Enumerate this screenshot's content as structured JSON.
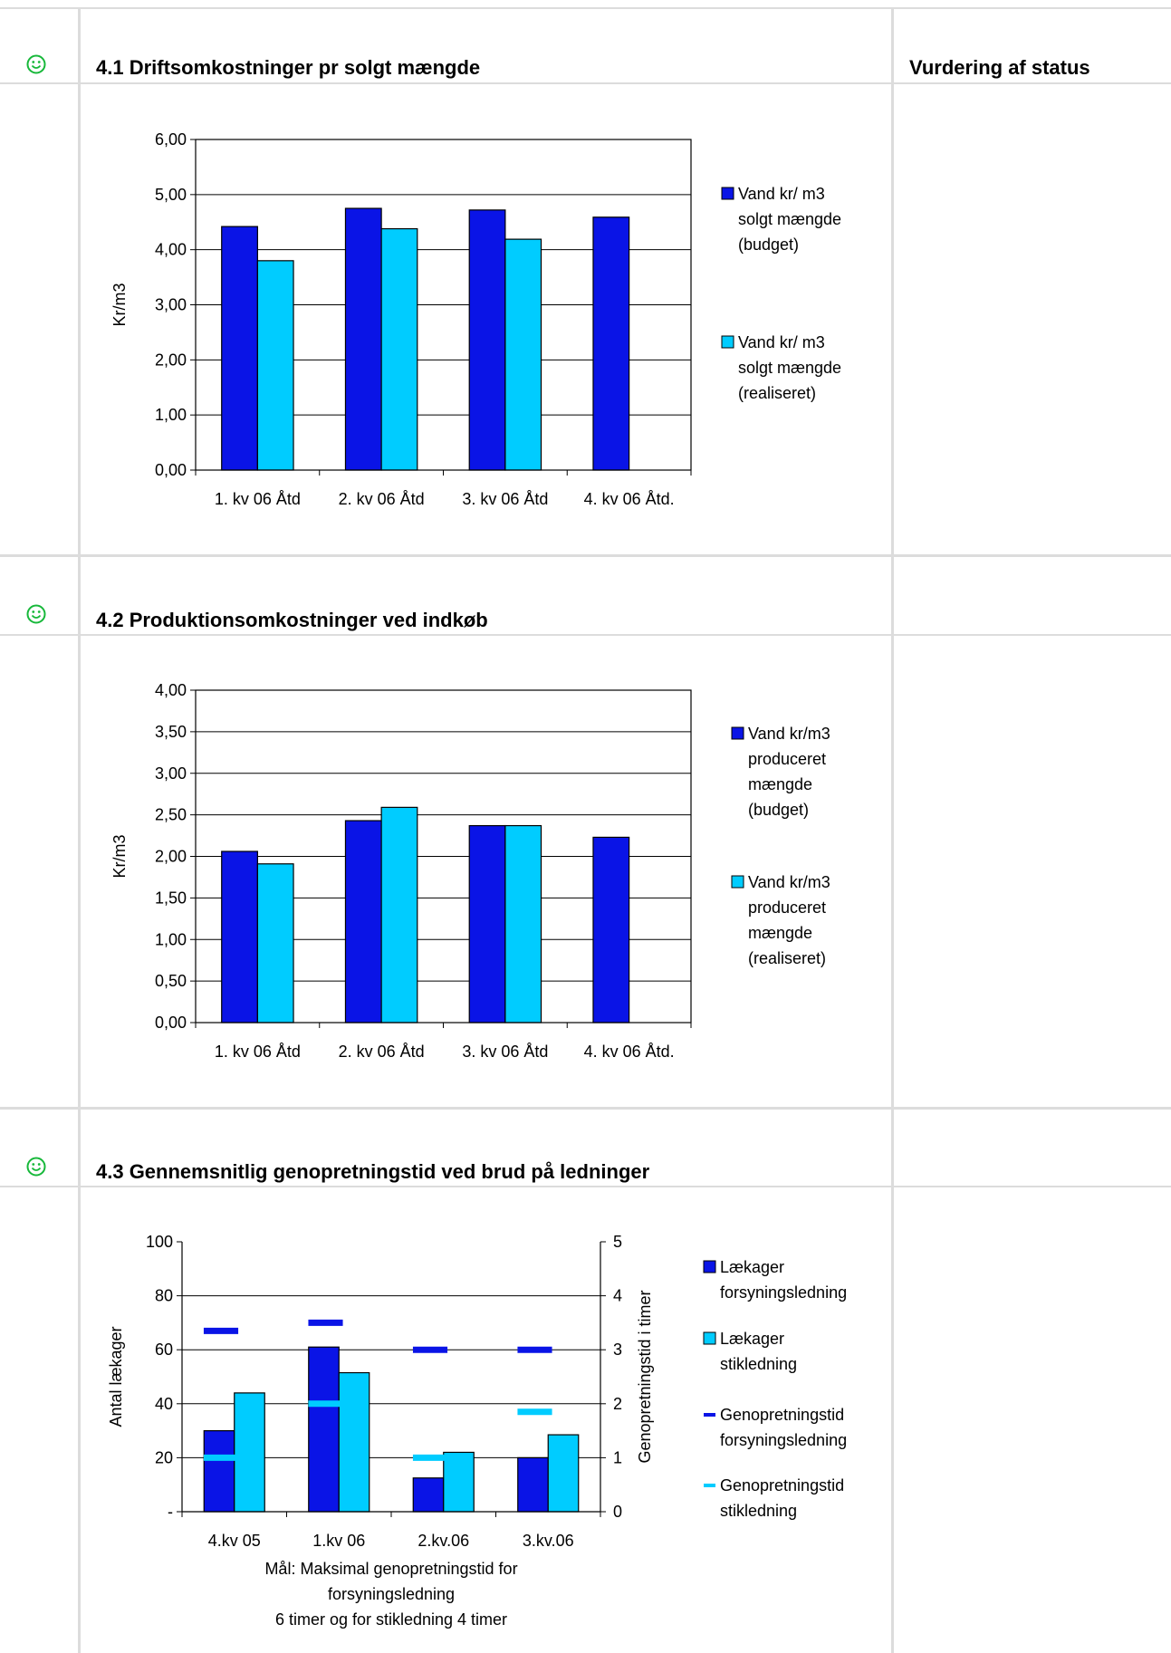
{
  "status_header": "Vurdering af status",
  "sections": [
    {
      "title": "4.1 Driftsomkostninger pr solgt mængde",
      "status_icon": "smiley-green"
    },
    {
      "title": "4.2 Produktionsomkostninger ved indkøb",
      "status_icon": "smiley-green"
    },
    {
      "title": "4.3 Gennemsnitlig genopretningstid ved brud på ledninger",
      "status_icon": "smiley-green"
    }
  ],
  "colors": {
    "dark_blue": "#0a14e6",
    "light_blue": "#00ccff",
    "grid": "#dcdcdc",
    "smiley": "#17b83a"
  },
  "chart_data": [
    {
      "type": "bar",
      "categories": [
        "1. kv 06 Åtd",
        "2. kv 06 Åtd",
        "3. kv 06 Åtd",
        "4. kv 06 Åtd."
      ],
      "ylabel": "Kr/m3",
      "ylim": [
        0,
        6
      ],
      "yticks": [
        "0,00",
        "1,00",
        "2,00",
        "3,00",
        "4,00",
        "5,00",
        "6,00"
      ],
      "grid": true,
      "legend_position": "right",
      "series": [
        {
          "name": "Vand kr/ m3 solgt mængde (budget)",
          "legend_lines": [
            "Vand kr/ m3",
            "solgt mængde",
            "(budget)"
          ],
          "color": "#0a14e6",
          "values": [
            4.42,
            4.75,
            4.72,
            4.59
          ]
        },
        {
          "name": "Vand kr/ m3 solgt mængde (realiseret)",
          "legend_lines": [
            "Vand kr/ m3",
            "solgt mængde",
            "(realiseret)"
          ],
          "color": "#00ccff",
          "values": [
            3.8,
            4.38,
            4.19,
            null
          ]
        }
      ]
    },
    {
      "type": "bar",
      "categories": [
        "1. kv 06 Åtd",
        "2. kv 06 Åtd",
        "3. kv 06 Åtd",
        "4. kv 06 Åtd."
      ],
      "ylabel": "Kr/m3",
      "ylim": [
        0,
        4
      ],
      "yticks": [
        "0,00",
        "0,50",
        "1,00",
        "1,50",
        "2,00",
        "2,50",
        "3,00",
        "3,50",
        "4,00"
      ],
      "grid": true,
      "legend_position": "right",
      "series": [
        {
          "name": "Vand kr/m3 produceret mængde (budget)",
          "legend_lines": [
            "Vand kr/m3",
            "produceret",
            "mængde",
            "(budget)"
          ],
          "color": "#0a14e6",
          "values": [
            2.06,
            2.43,
            2.37,
            2.23
          ]
        },
        {
          "name": "Vand kr/m3 produceret mængde (realiseret)",
          "legend_lines": [
            "Vand kr/m3",
            "produceret",
            "mængde",
            "(realiseret)"
          ],
          "color": "#00ccff",
          "values": [
            1.91,
            2.59,
            2.37,
            null
          ]
        }
      ]
    },
    {
      "type": "bar",
      "categories": [
        "4.kv 05",
        "1.kv 06",
        "2.kv.06",
        "3.kv.06"
      ],
      "ylabel": "Antal lækager",
      "y2label": "Genopretningstid i timer",
      "ylim": [
        0,
        100
      ],
      "y2lim": [
        0,
        5
      ],
      "yticks": [
        "-",
        "20",
        "40",
        "60",
        "80",
        "100"
      ],
      "y2ticks": [
        "0",
        "1",
        "2",
        "3",
        "4",
        "5"
      ],
      "grid": true,
      "legend_position": "right",
      "caption_lines": [
        "Mål: Maksimal genopretningstid  for",
        "forsyningsledning",
        "6 timer og for stikledning 4 timer"
      ],
      "series": [
        {
          "name": "Lækager forsyningsledning",
          "legend_lines": [
            "Lækager",
            "forsyningsledning"
          ],
          "kind": "bar",
          "axis": "left",
          "color": "#0a14e6",
          "values": [
            30,
            61,
            12.5,
            20
          ]
        },
        {
          "name": "Lækager stikledning",
          "legend_lines": [
            "Lækager",
            "stikledning"
          ],
          "kind": "bar",
          "axis": "left",
          "color": "#00ccff",
          "values": [
            44,
            51.5,
            22,
            28.5
          ]
        },
        {
          "name": "Genopretningstid forsyningsledning",
          "legend_lines": [
            "Genopretningstid",
            "forsyningsledning"
          ],
          "kind": "marker",
          "axis": "right",
          "color": "#0a14e6",
          "values": [
            3.35,
            3.5,
            3.0,
            3.0
          ]
        },
        {
          "name": "Genopretningstid stikledning",
          "legend_lines": [
            "Genopretningstid",
            "stikledning"
          ],
          "kind": "marker",
          "axis": "right",
          "color": "#00ccff",
          "values": [
            1.0,
            2.0,
            1.0,
            1.85
          ]
        }
      ]
    }
  ]
}
